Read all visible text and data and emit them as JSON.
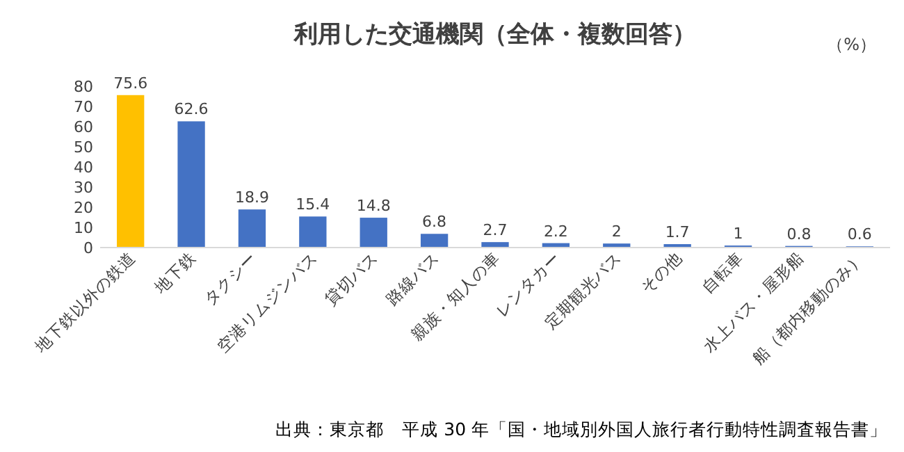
{
  "chart_data": {
    "type": "bar",
    "title": "利用した交通機関（全体・複数回答）",
    "ylabel": "（%）",
    "categories": [
      "地下鉄以外の鉄道",
      "地下鉄",
      "タクシー",
      "空港リムジンバス",
      "貸切バス",
      "路線バス",
      "親族・知人の車",
      "レンタカー",
      "定期観光バス",
      "その他",
      "自転車",
      "水上バス・屋形船",
      "船（都内移動のみ）"
    ],
    "values": [
      75.6,
      62.6,
      18.9,
      15.4,
      14.8,
      6.8,
      2.7,
      2.2,
      2,
      1.7,
      1,
      0.8,
      0.6
    ],
    "colors": [
      "#ffc000",
      "#4472c4",
      "#4472c4",
      "#4472c4",
      "#4472c4",
      "#4472c4",
      "#4472c4",
      "#4472c4",
      "#4472c4",
      "#4472c4",
      "#4472c4",
      "#4472c4",
      "#4472c4"
    ],
    "ylim": [
      0,
      80
    ],
    "yticks": [
      0,
      10,
      20,
      30,
      40,
      50,
      60,
      70,
      80
    ],
    "data_labels": true,
    "annotations": [
      "出典：東京都　平成 30 年「国・地域別外国人旅行者行動特性調査報告書」"
    ]
  }
}
